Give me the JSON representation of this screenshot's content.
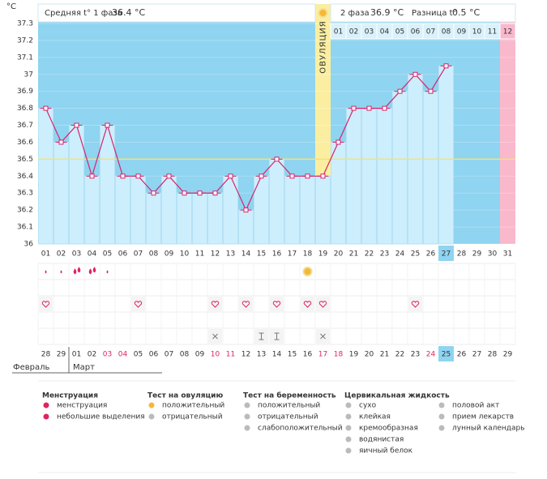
{
  "chart_data": {
    "type": "line",
    "y_label": "°C",
    "categories": [
      "01",
      "02",
      "03",
      "04",
      "05",
      "06",
      "07",
      "08",
      "09",
      "10",
      "11",
      "12",
      "13",
      "14",
      "15",
      "16",
      "17",
      "18",
      "19",
      "20",
      "21",
      "22",
      "23",
      "24",
      "25",
      "26",
      "27",
      "28",
      "29",
      "30",
      "31"
    ],
    "values": [
      36.8,
      36.6,
      36.7,
      36.4,
      36.7,
      36.4,
      36.4,
      36.3,
      36.4,
      36.3,
      36.3,
      36.3,
      36.4,
      36.2,
      36.4,
      36.5,
      36.4,
      36.4,
      36.4,
      36.6,
      36.8,
      36.8,
      36.8,
      36.9,
      37.0,
      36.9,
      37.05,
      null,
      null,
      null,
      null
    ],
    "ylim": [
      36,
      37.3
    ],
    "yticks": [
      36,
      36.1,
      36.2,
      36.3,
      36.4,
      36.5,
      36.6,
      36.7,
      36.8,
      36.9,
      37,
      37.1,
      37.2,
      37.3
    ],
    "coverline": 36.5,
    "line_color": "#d6246e",
    "bar_color": "#cdeefc",
    "background": "#8fd4f0",
    "ovulation_label": "ОВУЛЯЦИЯ",
    "phase2_days": [
      "01",
      "02",
      "03",
      "04",
      "05",
      "06",
      "07",
      "08",
      "09",
      "10",
      "11",
      "12"
    ],
    "calendar_dates": [
      "28",
      "29",
      "01",
      "02",
      "03",
      "04",
      "05",
      "06",
      "07",
      "08",
      "09",
      "10",
      "11",
      "12",
      "13",
      "14",
      "15",
      "16",
      "17",
      "18",
      "19",
      "20",
      "21",
      "22",
      "23",
      "24",
      "25",
      "26",
      "27",
      "28",
      "29"
    ],
    "calendar_red": [
      false,
      false,
      false,
      false,
      true,
      true,
      false,
      false,
      false,
      false,
      false,
      true,
      true,
      false,
      false,
      false,
      false,
      false,
      true,
      true,
      false,
      false,
      false,
      false,
      false,
      true,
      false,
      false,
      false,
      false,
      false
    ],
    "months": [
      "Февраль",
      "Март"
    ]
  },
  "header": {
    "phase1_label": "Средняя t° 1 фаза",
    "phase1_value": "36.4 °C",
    "phase2_label": "2 фаза",
    "phase2_value": "36.9 °C",
    "diff_label": "Разница t°",
    "diff_value": "0.5 °C"
  },
  "legend": [
    {
      "title": "Менструация",
      "items": [
        "менструация",
        "небольшие выделения"
      ]
    },
    {
      "title": "Тест на овуляцию",
      "items": [
        "положительный",
        "отрицательный"
      ]
    },
    {
      "title": "Тест на беременность",
      "items": [
        "положительный",
        "отрицательный",
        "слабоположительный"
      ]
    },
    {
      "title": "Цервикальная жидкость",
      "items": [
        "сухо",
        "клейкая",
        "кремообразная",
        "водянистая",
        "яичный белок"
      ]
    },
    {
      "title": "",
      "items": [
        "половой акт",
        "прием лекарств",
        "лунный календарь"
      ]
    }
  ]
}
